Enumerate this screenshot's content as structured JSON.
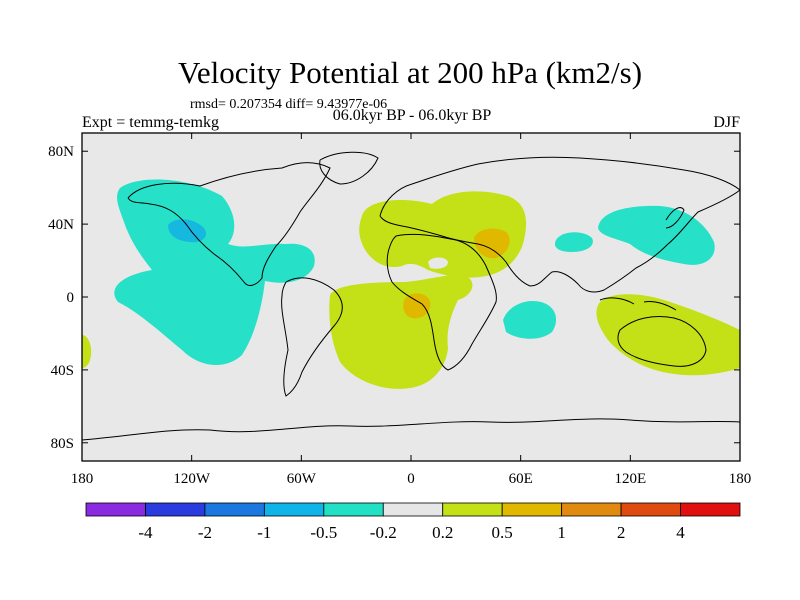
{
  "chart_data": {
    "type": "heatmap",
    "title": "Velocity Potential at 200 hPa (km2/s)",
    "stats_text": "rmsd= 0.207354 diff= 9.43977e-06",
    "subtitle_center": "06.0kyr BP - 06.0kyr BP",
    "subtitle_left": "Expt = temmg-temkg",
    "subtitle_right": "DJF",
    "x_ticks": [
      "180",
      "120W",
      "60W",
      "0",
      "60E",
      "120E",
      "180"
    ],
    "y_ticks": [
      "80N",
      "40N",
      "0",
      "40S",
      "80S"
    ],
    "lon_range": [
      -180,
      180
    ],
    "lat_range": [
      -90,
      90
    ],
    "colorbar": {
      "labels": [
        "-4",
        "-2",
        "-1",
        "-0.5",
        "-0.2",
        "0.2",
        "0.5",
        "1",
        "2",
        "4"
      ],
      "colors": [
        "#8a2be2",
        "#2a3ce0",
        "#1a78e0",
        "#10b4e8",
        "#22e0c4",
        "#e6e6e6",
        "#c4e016",
        "#e0b800",
        "#e08a10",
        "#e04a10",
        "#e01010"
      ]
    },
    "regions": [
      {
        "name": "north-pacific-negative",
        "level": "-0.5 to -0.2",
        "color": "#26e0c8"
      },
      {
        "name": "north-america-negative-core",
        "level": "-1 to -0.5",
        "color": "#16b8e0"
      },
      {
        "name": "east-asia-negative",
        "level": "-0.5 to -0.2",
        "color": "#26e0c8"
      },
      {
        "name": "central-asia-negative",
        "level": "-0.5 to -0.2",
        "color": "#26e0c8"
      },
      {
        "name": "indian-ocean-negative",
        "level": "-0.5 to -0.2",
        "color": "#26e0c8"
      },
      {
        "name": "south-pacific-edge-positive",
        "level": "0.2 to 0.5",
        "color": "#c4e016"
      },
      {
        "name": "atlantic-africa-positive",
        "level": "0.2 to 0.5",
        "color": "#c4e016"
      },
      {
        "name": "europe-middle-east-positive",
        "level": "0.2 to 0.5",
        "color": "#c4e016"
      },
      {
        "name": "arabia-positive-core",
        "level": "0.5 to 1",
        "color": "#e0b800"
      },
      {
        "name": "south-atlantic-positive-core",
        "level": "0.5 to 1",
        "color": "#e0b800"
      },
      {
        "name": "australia-positive",
        "level": "0.2 to 0.5",
        "color": "#c4e016"
      }
    ]
  }
}
